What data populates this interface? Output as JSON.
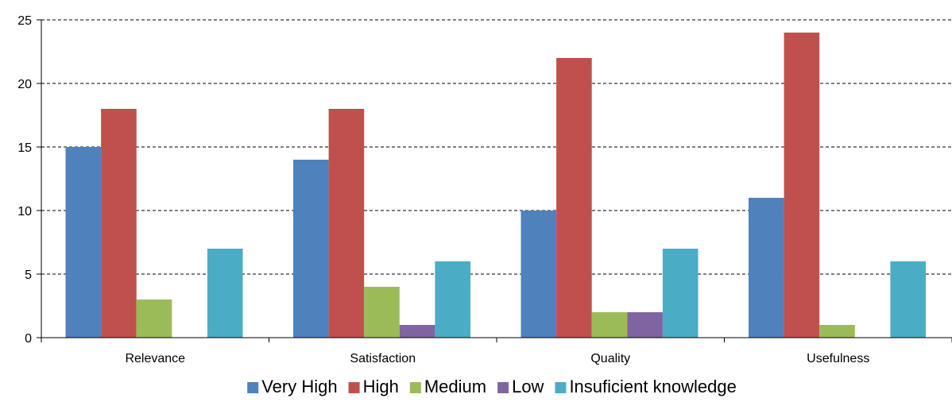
{
  "chart_data": {
    "type": "bar",
    "title": "",
    "xlabel": "",
    "ylabel": "",
    "ylim": [
      0,
      25
    ],
    "yticks": [
      0,
      5,
      10,
      15,
      20,
      25
    ],
    "grid": "horizontal dashed",
    "legend_position": "bottom",
    "categories": [
      "Relevance",
      "Satisfaction",
      "Quality",
      "Usefulness"
    ],
    "series": [
      {
        "name": "Very High",
        "color": "#4f81bd",
        "values": [
          15,
          14,
          10,
          11
        ]
      },
      {
        "name": "High",
        "color": "#c0504d",
        "values": [
          18,
          18,
          22,
          24
        ]
      },
      {
        "name": "Medium",
        "color": "#9bbb59",
        "values": [
          3,
          4,
          2,
          1
        ]
      },
      {
        "name": "Low",
        "color": "#8064a2",
        "values": [
          0,
          1,
          2,
          0
        ]
      },
      {
        "name": "Insuficient knowledge",
        "color": "#4bacc6",
        "values": [
          7,
          6,
          7,
          6
        ]
      }
    ]
  }
}
